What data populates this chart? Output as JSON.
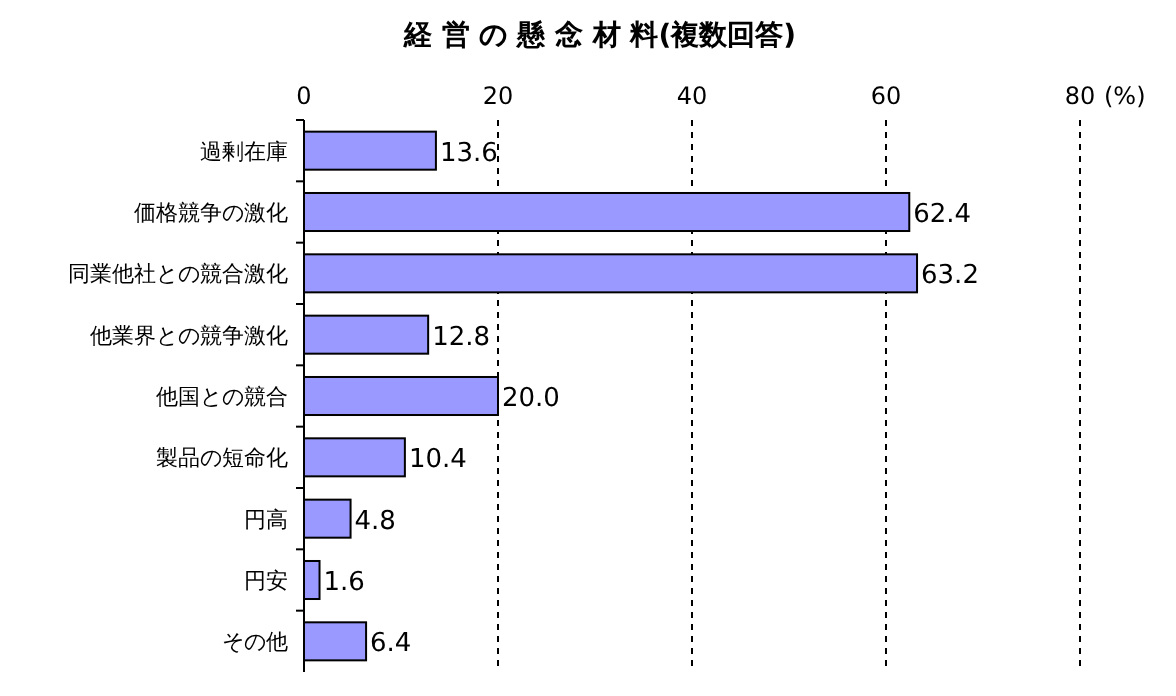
{
  "chart_data": {
    "type": "bar",
    "orientation": "horizontal",
    "title": "経 営 の 懸 念 材 料(複数回答)",
    "xlabel": "(%)",
    "categories": [
      "過剰在庫",
      "価格競争の激化",
      "同業他社との競合激化",
      "他業界との競争激化",
      "他国との競合",
      "製品の短命化",
      "円高",
      "円安",
      "その他"
    ],
    "values": [
      13.6,
      62.4,
      63.2,
      12.8,
      20.0,
      10.4,
      4.8,
      1.6,
      6.4
    ],
    "value_labels": [
      "13.6",
      "62.4",
      "63.2",
      "12.8",
      "20.0",
      "10.4",
      "4.8",
      "1.6",
      "6.4"
    ],
    "color": "#9999ff",
    "xlim": [
      0,
      80
    ],
    "xticks": [
      0,
      20,
      40,
      60,
      80
    ],
    "grid": "x"
  }
}
